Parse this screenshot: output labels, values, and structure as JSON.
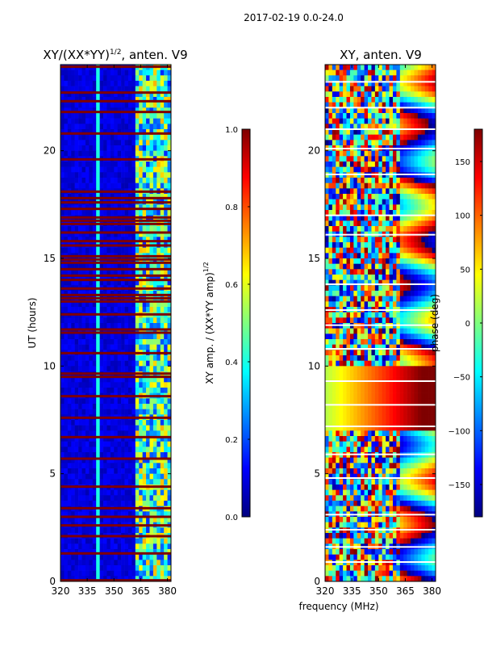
{
  "colors": {
    "jet": [
      "#00007f",
      "#0000ff",
      "#007fff",
      "#00ffff",
      "#7fff7f",
      "#ffff00",
      "#ff7f00",
      "#ff0000",
      "#7f0000"
    ],
    "axis": "#000000",
    "flag_line": "#7f0000"
  },
  "chart_data": [
    {
      "type": "heatmap",
      "title": "XY/(XX*YY)",
      "title_exponent": "1/2",
      "title_suffix": ", anten. V9",
      "suptitle": "2017-02-19 0.0-24.0",
      "xlabel": "",
      "ylabel": "UT (hours)",
      "xlim": [
        320,
        382
      ],
      "ylim": [
        0,
        24
      ],
      "xticks": [
        320,
        335,
        350,
        365,
        380
      ],
      "xtick_labels": [
        "320",
        "335",
        "350",
        "365",
        "380"
      ],
      "yticks": [
        0,
        5,
        10,
        15,
        20
      ],
      "ytick_labels": [
        "0",
        "5",
        "10",
        "15",
        "20"
      ],
      "colorbar": {
        "label": "XY amp. / (XX*YY amp)",
        "label_exponent": "1/2",
        "range": [
          0.0,
          1.0
        ],
        "ticks": [
          0.0,
          0.2,
          0.4,
          0.6,
          0.8,
          1.0
        ],
        "tick_labels": [
          "0.0",
          "0.2",
          "0.4",
          "0.6",
          "0.8",
          "1.0"
        ]
      },
      "description_of_values": "Normalized cross-correlation amplitude; mostly near 0 (dark blue) for 320-362 MHz, elevated 0.3-0.7 patchy values for 362-382 MHz; many fully flagged (1.0) time rows, densely between 13 and 18 hours",
      "flagged_hours": [
        0.05,
        1.3,
        2.1,
        2.6,
        3.0,
        3.4,
        4.4,
        5.7,
        6.7,
        7.6,
        8.6,
        9.5,
        9.65,
        10.6,
        11.55,
        11.7,
        12.4,
        13.0,
        13.15,
        13.3,
        13.6,
        14.0,
        14.2,
        14.5,
        14.8,
        14.95,
        15.1,
        15.6,
        15.8,
        16.2,
        16.6,
        16.75,
        16.9,
        17.3,
        17.6,
        17.8,
        18.1,
        19.6,
        20.8,
        21.8,
        22.3,
        22.7,
        23.9
      ]
    },
    {
      "type": "heatmap",
      "title": "XY, anten. V9",
      "xlabel": "frequency (MHz)",
      "ylabel": "",
      "xlim": [
        320,
        382
      ],
      "ylim": [
        0,
        24
      ],
      "xticks": [
        320,
        335,
        350,
        365,
        380
      ],
      "xtick_labels": [
        "320",
        "335",
        "350",
        "365",
        "380"
      ],
      "yticks": [
        0,
        5,
        10,
        15,
        20
      ],
      "ytick_labels": [
        "0",
        "5",
        "10",
        "15",
        "20"
      ],
      "colorbar": {
        "label": "phase (deg)",
        "range": [
          -180,
          180
        ],
        "ticks": [
          -150,
          -100,
          -50,
          0,
          50,
          100,
          150
        ],
        "tick_labels": [
          "−150",
          "−100",
          "−50",
          "0",
          "50",
          "100",
          "150"
        ]
      },
      "description_of_values": "Cross-correlation phase in degrees, full range -180 to 180, noisy with coherent sloped stripes above ~362 MHz and broad phase gradients between 7 and 10 hours",
      "blank_hours": [
        0.9,
        1.6,
        2.4,
        3.1,
        4.8,
        5.9,
        7.2,
        8.2,
        9.3,
        10.8,
        11.9,
        12.6,
        13.8,
        16.1,
        17.0,
        18.9,
        20.1,
        21.0,
        22.0,
        23.2
      ]
    }
  ]
}
